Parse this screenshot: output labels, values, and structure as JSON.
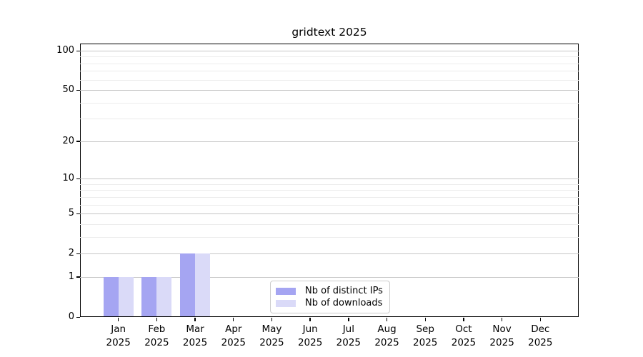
{
  "title": "gridtext 2025",
  "chart_data": {
    "type": "bar",
    "title": "gridtext 2025",
    "categories": [
      "Jan 2025",
      "Feb 2025",
      "Mar 2025",
      "Apr 2025",
      "May 2025",
      "Jun 2025",
      "Jul 2025",
      "Aug 2025",
      "Sep 2025",
      "Oct 2025",
      "Nov 2025",
      "Dec 2025"
    ],
    "series": [
      {
        "name": "Nb of distinct IPs",
        "color": "#a5a5f2",
        "values": [
          1,
          1,
          2,
          0,
          0,
          0,
          0,
          0,
          0,
          0,
          0,
          0
        ]
      },
      {
        "name": "Nb of downloads",
        "color": "#dadaf8",
        "values": [
          1,
          1,
          2,
          0,
          0,
          0,
          0,
          0,
          0,
          0,
          0,
          0
        ]
      }
    ],
    "xlabel": "",
    "ylabel": "",
    "yscale": "log1p",
    "ylim": [
      0,
      112
    ],
    "y_major_ticks": [
      0,
      1,
      2,
      5,
      10,
      20,
      50,
      100
    ],
    "y_minor_ticks": [
      3,
      4,
      6,
      7,
      8,
      9,
      30,
      40,
      60,
      70,
      80,
      90
    ],
    "grid": true,
    "legend_position": "lower center"
  },
  "colors": {
    "grid_major": "#c6c6c6",
    "grid_minor": "#ececec",
    "spine": "#000000",
    "background": "#ffffff"
  }
}
